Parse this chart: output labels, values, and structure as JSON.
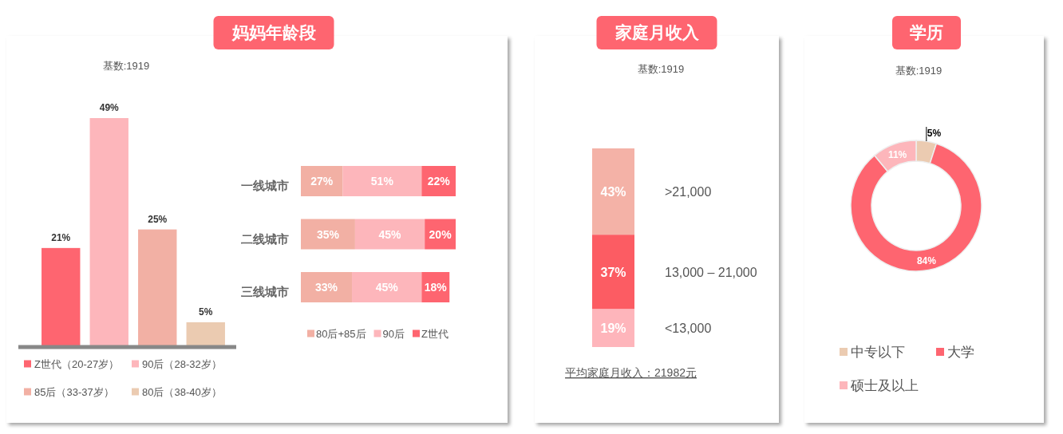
{
  "chart_data": [
    {
      "type": "bar",
      "title": "妈妈年龄段",
      "subtitle": "基数:1919",
      "categories": [
        null
      ],
      "series": [
        {
          "name": "Z世代（20-27岁）",
          "color": "#fe6570",
          "values": [
            21
          ],
          "value_labels": [
            "21%"
          ]
        },
        {
          "name": "90后（28-32岁）",
          "color": "#fdb6bb",
          "values": [
            49
          ],
          "value_labels": [
            "49%"
          ]
        },
        {
          "name": "85后（33-37岁）",
          "color": "#f2b0a4",
          "values": [
            25
          ],
          "value_labels": [
            "25%"
          ]
        },
        {
          "name": "80后（38-40岁）",
          "color": "#ebcbb1",
          "values": [
            5
          ],
          "value_labels": [
            "5%"
          ]
        }
      ],
      "legend": "bottom"
    },
    {
      "type": "bar",
      "orientation": "horizontal",
      "stacked": true,
      "categories": [
        "一线城市",
        "二线城市",
        "三线城市"
      ],
      "series": [
        {
          "name": "80后+85后",
          "color": "#f2b0a4",
          "values": [
            27,
            35,
            33
          ],
          "value_labels": [
            "27%",
            "35%",
            "33%"
          ]
        },
        {
          "name": "90后",
          "color": "#fdb6bb",
          "values": [
            51,
            45,
            45
          ],
          "value_labels": [
            "51%",
            "45%",
            "45%"
          ]
        },
        {
          "name": "Z世代",
          "color": "#fe6570",
          "values": [
            22,
            20,
            18
          ],
          "value_labels": [
            "22%",
            "20%",
            "18%"
          ]
        }
      ],
      "legend": "bottom"
    },
    {
      "type": "bar",
      "stacked": true,
      "title": "家庭月收入",
      "subtitle": "基数:1919",
      "categories": [
        null
      ],
      "series": [
        {
          "name": "<13,000",
          "color": "#feb5bb",
          "values": [
            19
          ],
          "value_labels": [
            "19%"
          ]
        },
        {
          "name": "13,000 – 21,000",
          "color": "#fc5c63",
          "values": [
            37
          ],
          "value_labels": [
            "37%"
          ]
        },
        {
          "name": ">21,000",
          "color": "#f4b2a7",
          "values": [
            43
          ],
          "value_labels": [
            "43%"
          ]
        }
      ],
      "annotations": [
        "平均家庭月收入：21982元"
      ]
    },
    {
      "type": "donut",
      "title": "学历",
      "subtitle": "基数:1919",
      "categories": [
        "中专以下",
        "大学",
        "硕士及以上"
      ],
      "values": [
        5,
        84,
        11
      ],
      "colors": [
        "#ebcbb1",
        "#fe6570",
        "#fdb6bb"
      ],
      "value_labels": [
        "5%",
        "84%",
        "11%"
      ],
      "legend": "bottom"
    }
  ]
}
